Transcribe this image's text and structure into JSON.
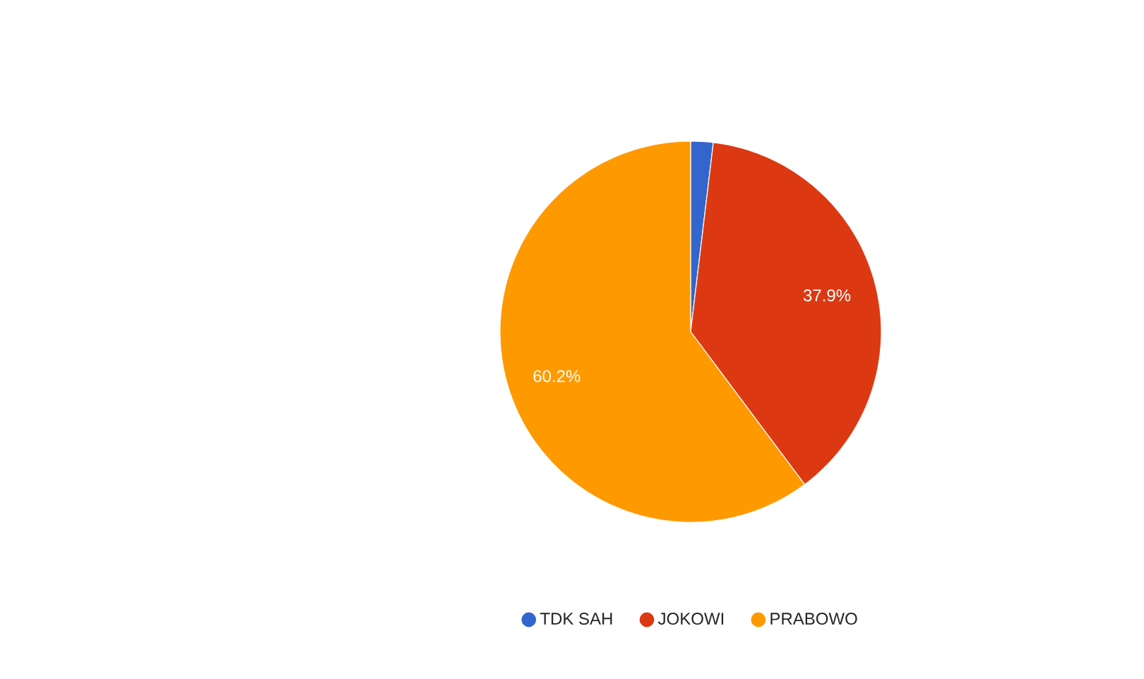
{
  "chart_data": {
    "type": "pie",
    "categories": [
      "TDK SAH",
      "JOKOWI",
      "PRABOWO"
    ],
    "values": [
      1.9,
      37.9,
      60.2
    ],
    "colors": [
      "#3366cc",
      "#dc3912",
      "#ff9900"
    ],
    "value_labels": [
      null,
      "37.9%",
      "60.2%"
    ],
    "legend": "bottom"
  }
}
